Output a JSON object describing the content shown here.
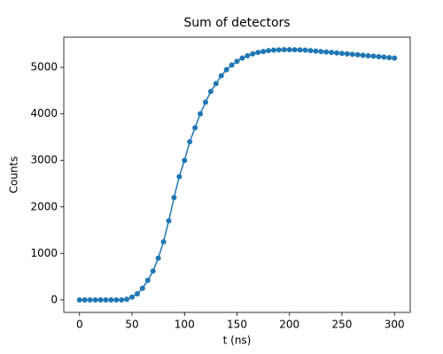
{
  "chart_data": {
    "type": "line",
    "title": "Sum of detectors",
    "xlabel": "t (ns)",
    "ylabel": "Counts",
    "x": [
      0,
      5,
      10,
      15,
      20,
      25,
      30,
      35,
      40,
      45,
      50,
      55,
      60,
      65,
      70,
      75,
      80,
      85,
      90,
      95,
      100,
      105,
      110,
      115,
      120,
      125,
      130,
      135,
      140,
      145,
      150,
      155,
      160,
      165,
      170,
      175,
      180,
      185,
      190,
      195,
      200,
      205,
      210,
      215,
      220,
      225,
      230,
      235,
      240,
      245,
      250,
      255,
      260,
      265,
      270,
      275,
      280,
      285,
      290,
      295,
      300
    ],
    "series": [
      {
        "name": "Sum",
        "color": "#1f77b4",
        "values": [
          0,
          0,
          0,
          0,
          0,
          0,
          0,
          0,
          0,
          15,
          60,
          130,
          250,
          420,
          620,
          900,
          1250,
          1700,
          2200,
          2650,
          3000,
          3400,
          3700,
          4000,
          4250,
          4480,
          4650,
          4820,
          4950,
          5050,
          5130,
          5200,
          5250,
          5290,
          5320,
          5340,
          5360,
          5370,
          5375,
          5380,
          5380,
          5378,
          5375,
          5370,
          5360,
          5350,
          5340,
          5330,
          5320,
          5310,
          5300,
          5290,
          5280,
          5270,
          5260,
          5250,
          5240,
          5230,
          5220,
          5210,
          5200
        ]
      }
    ],
    "xlim": [
      -15,
      315
    ],
    "ylim": [
      -269,
      5649
    ],
    "xticks": [
      0,
      50,
      100,
      150,
      200,
      250,
      300
    ],
    "yticks": [
      0,
      1000,
      2000,
      3000,
      4000,
      5000
    ],
    "grid": false
  }
}
